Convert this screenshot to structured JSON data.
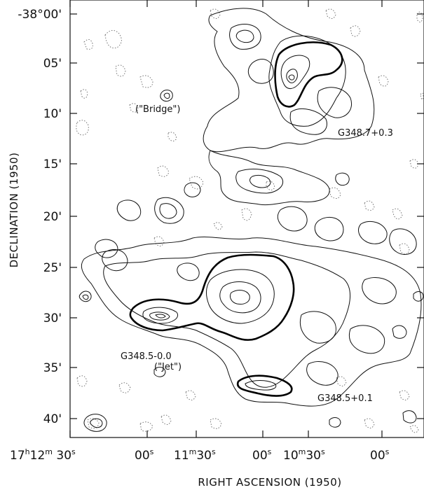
{
  "chart_data": {
    "type": "contour_map",
    "xlabel": "RIGHT ASCENSION (1950)",
    "ylabel": "DECLINATION (1950)",
    "x_ticks": [
      "17h12m 30s",
      "00s",
      "11m30s",
      "00s",
      "10m30s",
      "00s"
    ],
    "x_ticks_display": [
      {
        "main": "17",
        "sup1": "h",
        "mid": "12",
        "sup2": "m",
        "tail": " 30",
        "sup3": "s"
      },
      {
        "main": "00",
        "sup1": "s"
      },
      {
        "main": "11",
        "sup1": "m",
        "mid": "30",
        "sup2": "s"
      },
      {
        "main": "00",
        "sup1": "s"
      },
      {
        "main": "10",
        "sup1": "m",
        "mid": "30",
        "sup2": "s"
      },
      {
        "main": "00",
        "sup1": "s"
      }
    ],
    "y_ticks": [
      "-38°00'",
      "05'",
      "10'",
      "15'",
      "20'",
      "25'",
      "30'",
      "35'",
      "40'"
    ],
    "annotations": [
      {
        "name": "bridge",
        "text": "(\"Bridge\")"
      },
      {
        "name": "g348-7",
        "text": "G348.7+0.3"
      },
      {
        "name": "g348-5-jet",
        "text": "G348.5-0.0"
      },
      {
        "name": "jet",
        "text": "(\"Jet\")"
      },
      {
        "name": "g348-5-01",
        "text": "G348.5+0.1"
      }
    ]
  }
}
